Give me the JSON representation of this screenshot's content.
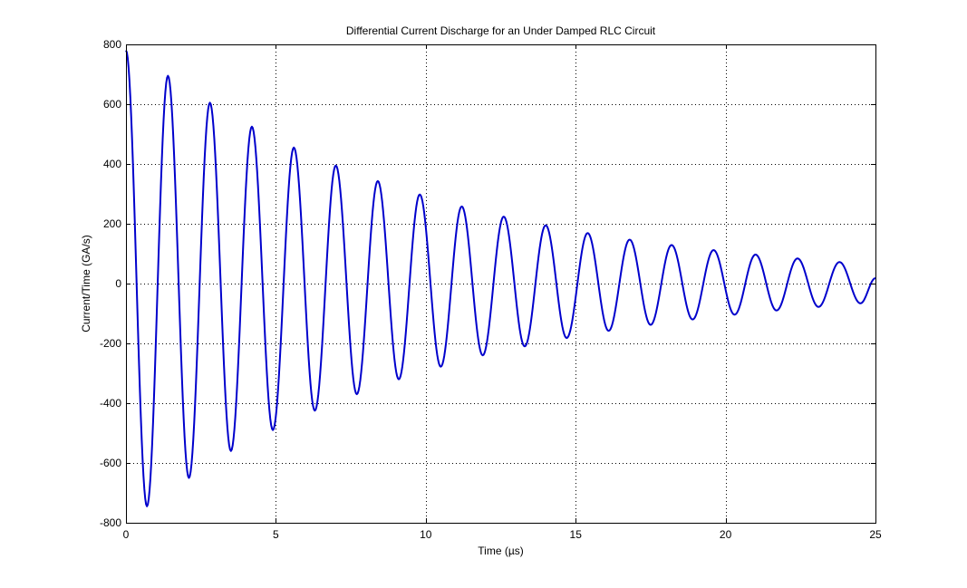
{
  "chart_data": {
    "type": "line",
    "title": "Differential Current Discharge for an Under Damped RLC Circuit",
    "xlabel": "Time (µs)",
    "ylabel": "Current/Time (GA/s)",
    "xlim": [
      0,
      25
    ],
    "ylim": [
      -800,
      800
    ],
    "xticks": [
      0,
      5,
      10,
      15,
      20,
      25
    ],
    "yticks": [
      -800,
      -600,
      -400,
      -200,
      0,
      200,
      400,
      600,
      800
    ],
    "xtick_labels": [
      "0",
      "5",
      "10",
      "15",
      "20",
      "25"
    ],
    "ytick_labels": [
      "-800",
      "-600",
      "-400",
      "-200",
      "0",
      "200",
      "400",
      "600",
      "800"
    ],
    "grid": true,
    "line_color": "#0000CC",
    "series": [
      {
        "x": [
          0,
          0.7,
          1.4,
          2.1,
          2.8,
          3.5,
          4.2,
          4.9,
          5.6,
          6.3,
          7.0,
          7.7,
          8.4,
          9.1,
          9.8,
          10.5,
          11.2,
          11.9,
          12.6,
          13.3,
          14.0,
          14.7,
          15.4,
          16.1,
          16.8,
          17.5,
          18.2,
          18.9,
          19.6,
          20.3,
          21.0,
          21.7,
          22.4,
          23.1,
          23.8,
          24.5,
          25.0
        ],
        "y": [
          780,
          -745,
          695,
          -650,
          605,
          -560,
          525,
          -490,
          455,
          -425,
          395,
          -370,
          343,
          -320,
          298,
          -278,
          258,
          -240,
          224,
          -210,
          195,
          -182,
          169,
          -158,
          147,
          -138,
          129,
          -120,
          112,
          -104,
          97,
          -90,
          84,
          -78,
          72,
          -66,
          18
        ]
      }
    ]
  }
}
